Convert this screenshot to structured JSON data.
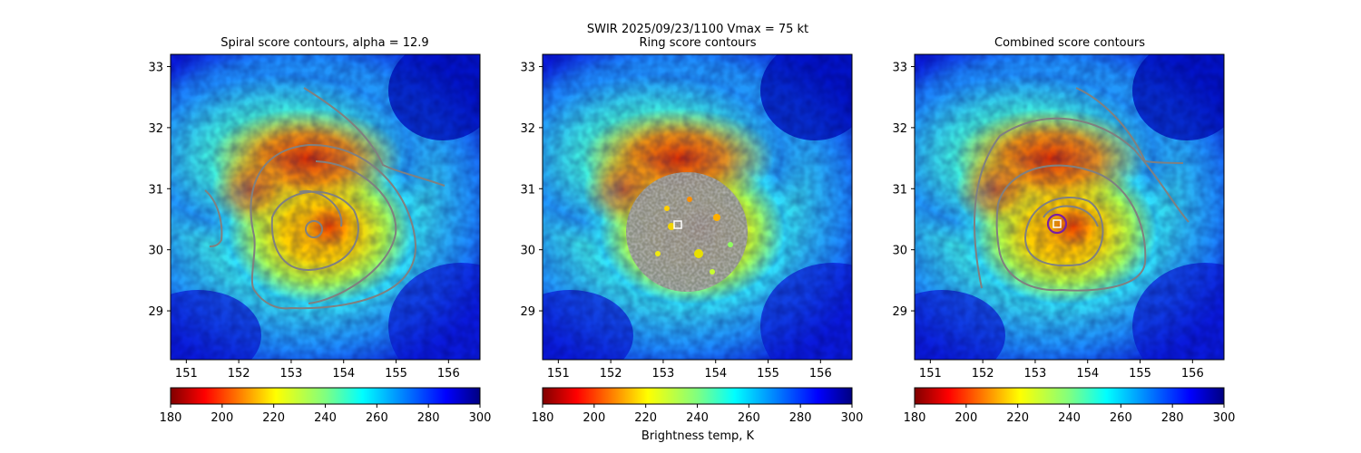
{
  "suptitle": {
    "line1": "SWIR  2025/09/23/1100    Vmax = 75 kt"
  },
  "colors": {
    "contour": "#808080",
    "ring_center_marker": "#ffffff",
    "combined_center_circle": "#7a1fa2"
  },
  "chart_data": [
    {
      "type": "heatmap",
      "title": "Spiral score contours, alpha = 12.9",
      "xlabel": "",
      "ylabel": "",
      "xlim": [
        150.7,
        156.6
      ],
      "ylim": [
        28.2,
        33.2
      ],
      "xticks": [
        "151",
        "152",
        "153",
        "154",
        "155",
        "156"
      ],
      "yticks": [
        "29",
        "30",
        "31",
        "32",
        "33"
      ],
      "storm_center": [
        153.45,
        30.4
      ],
      "colorbar": {
        "range": [
          180,
          300
        ],
        "ticks": [
          "180",
          "200",
          "220",
          "240",
          "260",
          "280",
          "300"
        ],
        "label": "",
        "colormap": "jet_reversed"
      },
      "contour_levels": [
        "eye ring",
        "inner ring",
        "middle spiral",
        "outer spiral band",
        "west arc"
      ]
    },
    {
      "type": "heatmap",
      "title": "Ring score contours",
      "xlabel": "",
      "ylabel": "",
      "xlim": [
        150.7,
        156.6
      ],
      "ylim": [
        28.2,
        33.2
      ],
      "xticks": [
        "151",
        "152",
        "153",
        "154",
        "155",
        "156"
      ],
      "yticks": [
        "29",
        "30",
        "31",
        "32",
        "33"
      ],
      "storm_center": [
        153.25,
        30.4
      ],
      "colorbar": {
        "range": [
          180,
          300
        ],
        "ticks": [
          "180",
          "200",
          "220",
          "240",
          "260",
          "280",
          "300"
        ],
        "label": "Brightness temp, K",
        "colormap": "jet_reversed"
      },
      "contour_levels": [
        "dense noisy ring-score field"
      ]
    },
    {
      "type": "heatmap",
      "title": "Combined score contours",
      "xlabel": "",
      "ylabel": "",
      "xlim": [
        150.7,
        156.6
      ],
      "ylim": [
        28.2,
        33.2
      ],
      "xticks": [
        "151",
        "152",
        "153",
        "154",
        "155",
        "156"
      ],
      "yticks": [
        "29",
        "30",
        "31",
        "32",
        "33"
      ],
      "storm_center": [
        153.4,
        30.45
      ],
      "colorbar": {
        "range": [
          180,
          300
        ],
        "ticks": [
          "180",
          "200",
          "220",
          "240",
          "260",
          "280",
          "300"
        ],
        "label": "",
        "colormap": "jet_reversed"
      },
      "contour_levels": [
        "eye ring",
        "inner ring",
        "middle spiral",
        "outer spiral band",
        "west arc"
      ]
    }
  ]
}
